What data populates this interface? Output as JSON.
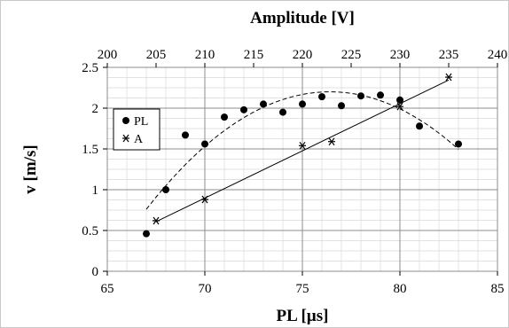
{
  "chart_data": {
    "type": "scatter",
    "title": "",
    "xlabel": "PL [µs]",
    "ylabel": "v [m/s]",
    "x2label": "Amplitude [V]",
    "xlim": [
      65,
      85
    ],
    "ylim": [
      0,
      2.5
    ],
    "x2lim": [
      200,
      240
    ],
    "xticks": [
      "65",
      "70",
      "75",
      "80",
      "85"
    ],
    "yticks": [
      "0",
      "0.5",
      "1",
      "1.5",
      "2",
      "2.5"
    ],
    "x2ticks": [
      "200",
      "205",
      "210",
      "215",
      "220",
      "225",
      "230",
      "235",
      "240"
    ],
    "grid": true,
    "legend_position": "top-left",
    "series": [
      {
        "name": "PL",
        "marker": "circle",
        "axis": "bottom",
        "x": [
          67,
          68,
          69,
          70,
          71,
          72,
          73,
          74,
          75,
          76,
          77,
          78,
          79,
          80,
          81,
          83
        ],
        "y": [
          0.46,
          1.0,
          1.67,
          1.56,
          1.89,
          1.98,
          2.05,
          1.95,
          2.05,
          2.14,
          2.03,
          2.15,
          2.16,
          2.1,
          1.78,
          1.56
        ],
        "trendline": {
          "type": "polynomial",
          "x_range": [
            67,
            83
          ]
        }
      },
      {
        "name": "A",
        "marker": "asterisk",
        "axis": "top",
        "x": [
          205,
          210,
          220,
          223,
          230,
          235
        ],
        "y": [
          0.62,
          0.88,
          1.54,
          1.59,
          2.02,
          2.38
        ],
        "trendline": {
          "type": "linear",
          "x_range": [
            205,
            235
          ]
        }
      }
    ]
  }
}
